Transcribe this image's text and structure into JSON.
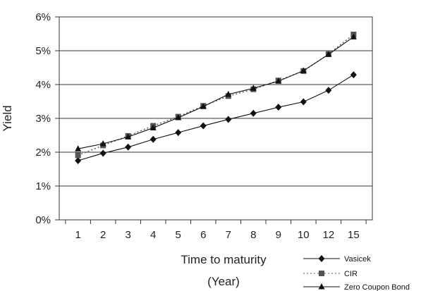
{
  "chart_data": {
    "type": "line",
    "categories": [
      "1",
      "2",
      "3",
      "4",
      "5",
      "6",
      "7",
      "8",
      "9",
      "10",
      "12",
      "15"
    ],
    "series": [
      {
        "name": "Vasicek",
        "marker": "diamond",
        "line": "solid",
        "color": "#111111",
        "values": [
          1.75,
          1.97,
          2.15,
          2.38,
          2.58,
          2.78,
          2.97,
          3.15,
          3.33,
          3.49,
          3.83,
          4.29
        ]
      },
      {
        "name": "CIR",
        "marker": "square",
        "line": "dotted",
        "color": "#555555",
        "values": [
          1.91,
          2.2,
          2.48,
          2.78,
          3.05,
          3.37,
          3.66,
          3.86,
          4.12,
          4.4,
          4.9,
          5.48
        ]
      },
      {
        "name": "Zero Coupon Bond",
        "marker": "triangle",
        "line": "solid",
        "color": "#111111",
        "values": [
          2.1,
          2.25,
          2.45,
          2.72,
          3.02,
          3.35,
          3.71,
          3.89,
          4.1,
          4.41,
          4.89,
          5.41
        ]
      }
    ],
    "xlabel_line1": "Time to maturity",
    "xlabel_line2": "(Year)",
    "ylabel": "Yield",
    "ylim": [
      0,
      6
    ],
    "yticks": [
      "0%",
      "1%",
      "2%",
      "3%",
      "4%",
      "5%",
      "6%"
    ],
    "grid": "horizontal",
    "legend_position": "bottom-right",
    "plot_background": "#ffffff",
    "grid_color": "#333333"
  }
}
